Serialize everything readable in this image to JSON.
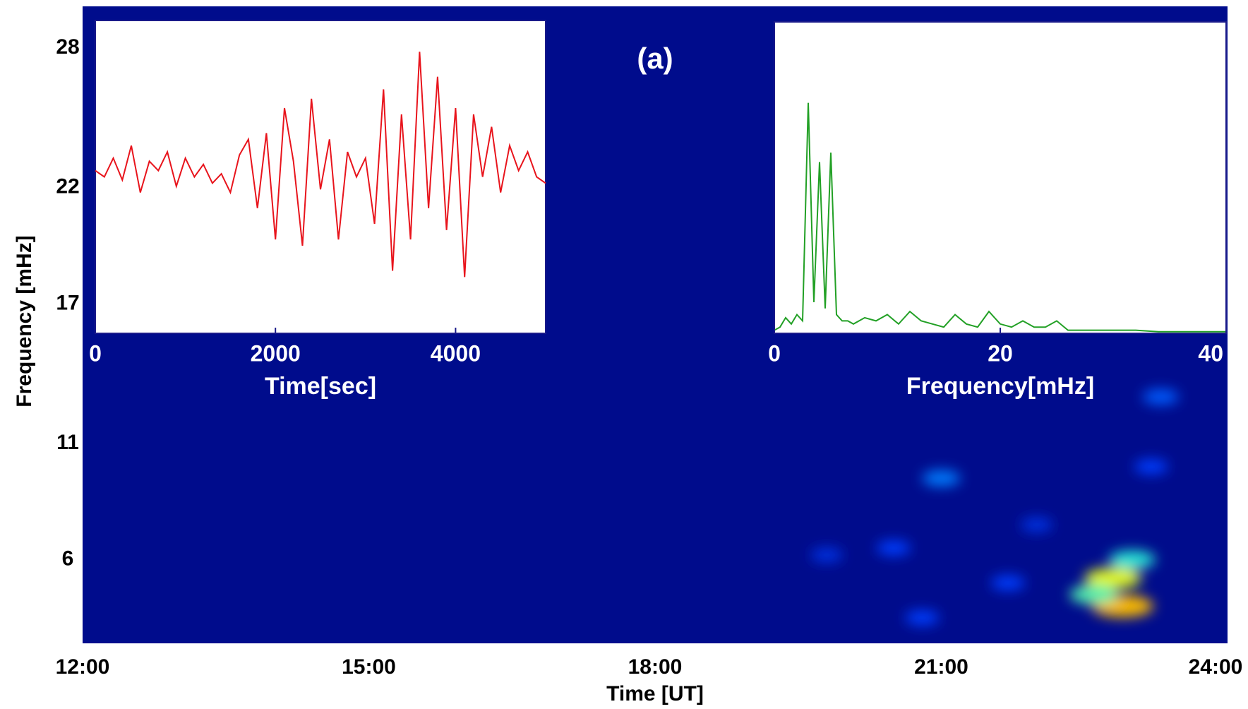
{
  "chart_data": [
    {
      "type": "heatmap",
      "title": "(a)",
      "xlabel": "Time [UT]",
      "ylabel": "Frequency [mHz]",
      "colormap": "jet",
      "xlim": [
        12,
        24
      ],
      "xticks": [
        {
          "value": 12,
          "label": "12:00"
        },
        {
          "value": 15,
          "label": "15:00"
        },
        {
          "value": 18,
          "label": "18:00"
        },
        {
          "value": 21,
          "label": "21:00"
        },
        {
          "value": 24,
          "label": "24:00"
        }
      ],
      "ylim": [
        2.4,
        29.8
      ],
      "yticks": [
        6,
        11,
        17,
        22,
        28
      ],
      "x": [
        22.8,
        22.9,
        22.6,
        23.0,
        21.0,
        20.5,
        23.3,
        23.2,
        20.8,
        22.0,
        21.7,
        19.8
      ],
      "y": [
        5.2,
        4.0,
        4.5,
        6.0,
        9.5,
        6.5,
        13,
        10,
        3.5,
        7.5,
        5.0,
        6.2
      ],
      "z": [
        0.75,
        0.85,
        0.55,
        0.5,
        0.3,
        0.2,
        0.25,
        0.2,
        0.2,
        0.15,
        0.2,
        0.15
      ]
    },
    {
      "type": "line",
      "xlabel": "Time[sec]",
      "color": "#e8141c",
      "xlim": [
        0,
        5000
      ],
      "xticks": [
        0,
        2000,
        4000
      ],
      "ylim": [
        0,
        100
      ],
      "x": [
        0,
        100,
        200,
        300,
        400,
        500,
        600,
        700,
        800,
        900,
        1000,
        1100,
        1200,
        1300,
        1400,
        1500,
        1600,
        1700,
        1800,
        1900,
        2000,
        2100,
        2200,
        2300,
        2400,
        2500,
        2600,
        2700,
        2800,
        2900,
        3000,
        3100,
        3200,
        3300,
        3400,
        3500,
        3600,
        3700,
        3800,
        3900,
        4000,
        4100,
        4200,
        4300,
        4400,
        4500,
        4600,
        4700,
        4800,
        4900,
        5000
      ],
      "values": [
        52,
        50,
        56,
        49,
        60,
        45,
        55,
        52,
        58,
        47,
        56,
        50,
        54,
        48,
        51,
        45,
        57,
        62,
        40,
        64,
        30,
        72,
        55,
        28,
        75,
        46,
        62,
        30,
        58,
        50,
        56,
        35,
        78,
        20,
        70,
        30,
        90,
        40,
        82,
        33,
        72,
        18,
        70,
        50,
        66,
        45,
        60,
        52,
        58,
        50,
        48
      ]
    },
    {
      "type": "line",
      "xlabel": "Frequency[mHz]",
      "color": "#22a025",
      "xlim": [
        0,
        40
      ],
      "xticks": [
        0,
        20,
        40
      ],
      "ylim": [
        0,
        100
      ],
      "x": [
        0,
        0.5,
        1,
        1.5,
        2,
        2.5,
        3,
        3.5,
        4,
        4.5,
        5,
        5.5,
        6,
        6.5,
        7,
        8,
        9,
        10,
        11,
        12,
        13,
        14,
        15,
        16,
        17,
        18,
        19,
        20,
        21,
        22,
        23,
        24,
        25,
        26,
        28,
        30,
        32,
        34,
        36,
        38,
        40
      ],
      "values": [
        1,
        2,
        5,
        3,
        6,
        4,
        74,
        10,
        55,
        8,
        58,
        6,
        4,
        4,
        3,
        5,
        4,
        6,
        3,
        7,
        4,
        3,
        2,
        6,
        3,
        2,
        7,
        3,
        2,
        4,
        2,
        2,
        4,
        1,
        1,
        1,
        1,
        0.5,
        0.5,
        0.5,
        0.5
      ]
    }
  ]
}
